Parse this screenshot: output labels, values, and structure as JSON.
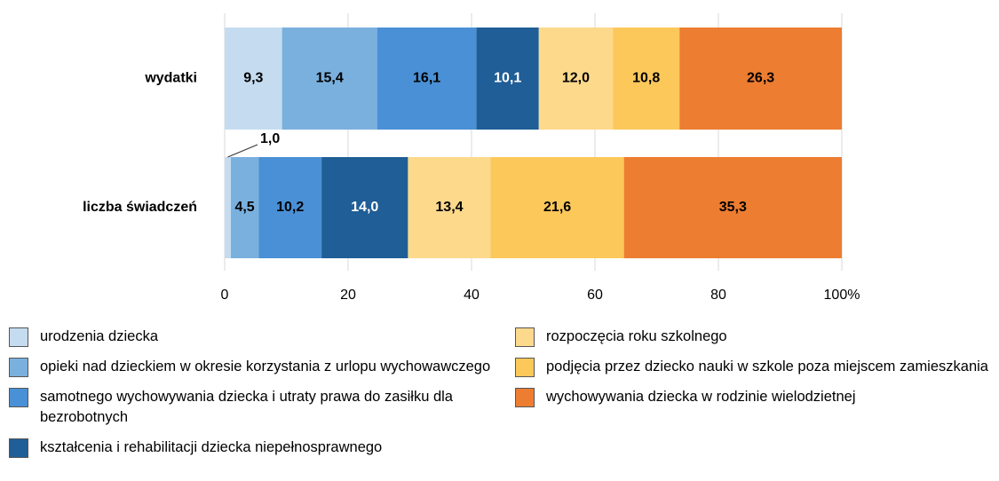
{
  "chart_data": {
    "type": "stacked-bar-horizontal",
    "categories": [
      "wydatki",
      "liczba świadczeń"
    ],
    "series": [
      {
        "name": "urodzenia dziecka",
        "color": "#c5dcf0",
        "values": [
          9.3,
          1.0
        ],
        "value_labels": [
          "9,3",
          "1,0"
        ]
      },
      {
        "name": "opieki nad dzieckiem w okresie korzystania z urlopu wychowawczego",
        "color": "#7ab0de",
        "values": [
          15.4,
          4.5
        ],
        "value_labels": [
          "15,4",
          "4,5"
        ]
      },
      {
        "name": "samotnego wychowywania dziecka i utraty prawa do zasiłku dla bezrobotnych",
        "color": "#4a90d6",
        "values": [
          16.1,
          10.2
        ],
        "value_labels": [
          "16,1",
          "10,2"
        ]
      },
      {
        "name": "kształcenia i rehabilitacji dziecka niepełnosprawnego",
        "color": "#1f5e96",
        "values": [
          10.1,
          14.0
        ],
        "value_labels": [
          "10,1",
          "14,0"
        ]
      },
      {
        "name": "rozpoczęcia roku szkolnego",
        "color": "#fdd98c",
        "values": [
          12.0,
          13.4
        ],
        "value_labels": [
          "12,0",
          "13,4"
        ]
      },
      {
        "name": "podjęcia przez dziecko nauki w szkole poza miejscem zamieszkania",
        "color": "#fcc85a",
        "values": [
          10.8,
          21.6
        ],
        "value_labels": [
          "10,8",
          "21,6"
        ]
      },
      {
        "name": "wychowywania dziecka w rodzinie wielodzietnej",
        "color": "#ed7d31",
        "values": [
          26.3,
          35.3
        ],
        "value_labels": [
          "26,3",
          "35,3"
        ]
      }
    ],
    "xlim": [
      0,
      100
    ],
    "xticks": [
      0,
      20,
      40,
      60,
      80,
      {
        "value": 100,
        "label": "100%"
      }
    ],
    "grid": true
  }
}
